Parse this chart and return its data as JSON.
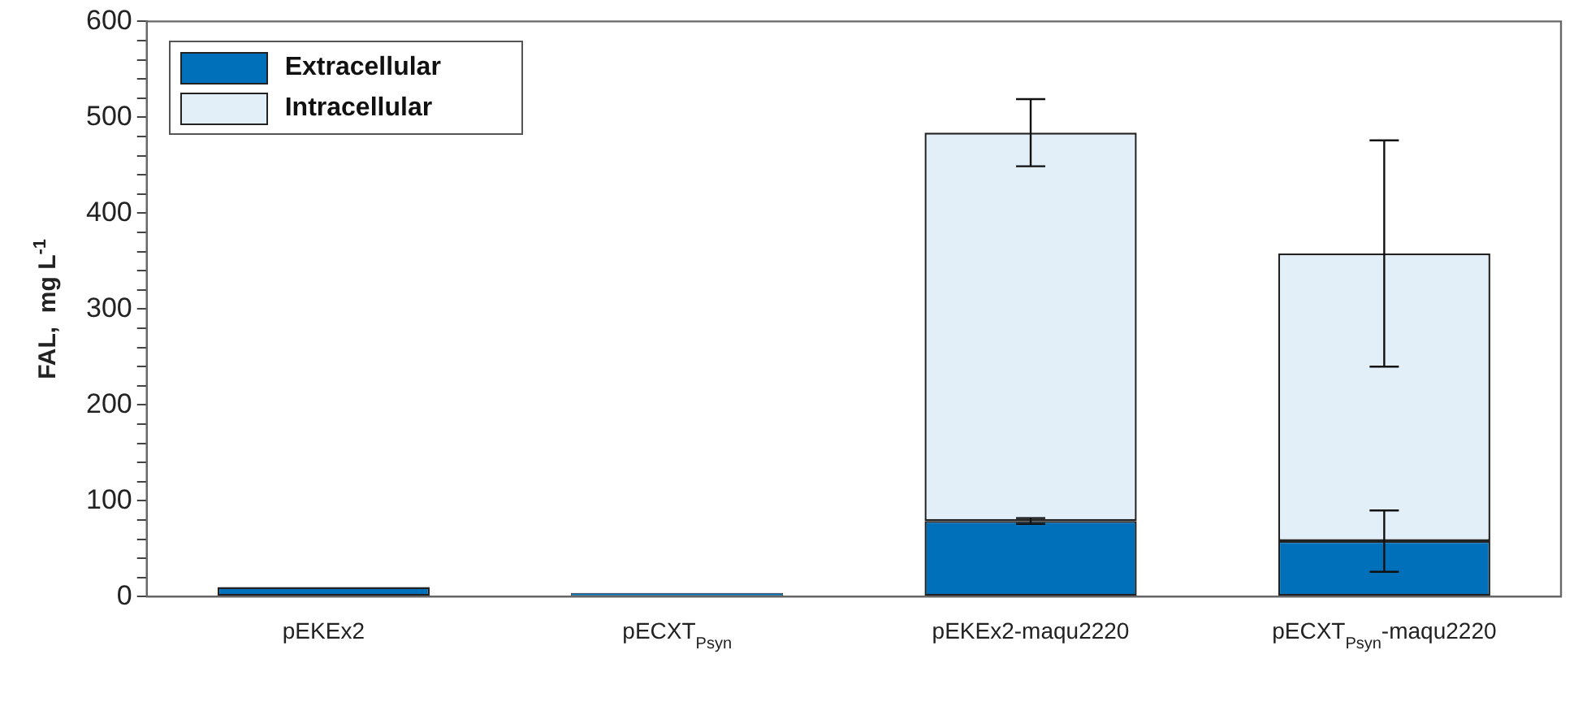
{
  "chart_data": {
    "type": "bar",
    "stacked": true,
    "ylabel": "FAL,  mg L$^{-1}$",
    "categories": [
      "pEKEx2",
      "pECXT$_{Psyn}$",
      "pEKEx2-maqu2220",
      "pECXT$_{Psyn}$-maqu2220"
    ],
    "series": [
      {
        "name": "Extracellular",
        "color": "#0070bb",
        "values": [
          10,
          4,
          79,
          58
        ],
        "errors": [
          null,
          null,
          3,
          32
        ]
      },
      {
        "name": "Intracellular",
        "color": "#e2eff8",
        "values": [
          null,
          null,
          405,
          300
        ],
        "errors": [
          null,
          null,
          35,
          118
        ]
      }
    ],
    "ylim": [
      0,
      600
    ],
    "yticks": [
      0,
      {
        "value": 20,
        "label": null
      },
      {
        "value": 40,
        "label": null
      },
      {
        "value": 60,
        "label": null
      },
      {
        "value": 80,
        "label": null
      },
      100,
      {
        "value": 120,
        "label": null
      },
      {
        "value": 140,
        "label": null
      },
      {
        "value": 160,
        "label": null
      },
      {
        "value": 180,
        "label": null
      },
      200,
      {
        "value": 220,
        "label": null
      },
      {
        "value": 240,
        "label": null
      },
      {
        "value": 260,
        "label": null
      },
      {
        "value": 280,
        "label": null
      },
      300,
      {
        "value": 320,
        "label": null
      },
      {
        "value": 340,
        "label": null
      },
      {
        "value": 360,
        "label": null
      },
      {
        "value": 380,
        "label": null
      },
      400,
      {
        "value": 420,
        "label": null
      },
      {
        "value": 440,
        "label": null
      },
      {
        "value": 460,
        "label": null
      },
      {
        "value": 480,
        "label": null
      },
      500,
      {
        "value": 520,
        "label": null
      },
      {
        "value": 540,
        "label": null
      },
      {
        "value": 560,
        "label": null
      },
      {
        "value": 580,
        "label": null
      },
      600
    ],
    "grid": false,
    "legend": "top left"
  }
}
